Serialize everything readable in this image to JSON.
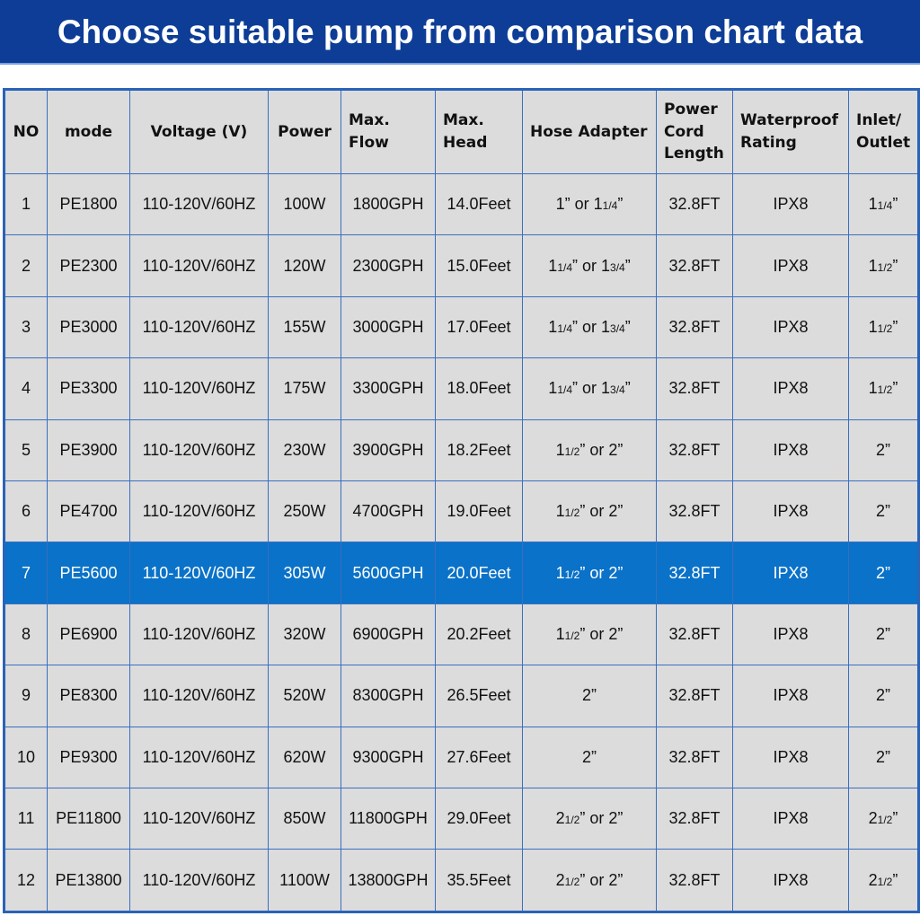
{
  "header": {
    "title": "Choose suitable pump from comparison chart data"
  },
  "table": {
    "columns": [
      "NO",
      "mode",
      "Voltage (V)",
      "Power",
      "Max. Flow",
      "Max. Head",
      "Hose Adapter",
      "Power Cord Length",
      "Waterproof Rating",
      "Inlet/ Outlet"
    ],
    "rows": [
      [
        "1",
        "PE1800",
        "110-120V/60HZ",
        "100W",
        "1800GPH",
        "14.0Feet",
        "1” or 11/4”",
        "32.8FT",
        "IPX8",
        "11/4”"
      ],
      [
        "2",
        "PE2300",
        "110-120V/60HZ",
        "120W",
        "2300GPH",
        "15.0Feet",
        "11/4” or 13/4”",
        "32.8FT",
        "IPX8",
        "11/2”"
      ],
      [
        "3",
        "PE3000",
        "110-120V/60HZ",
        "155W",
        "3000GPH",
        "17.0Feet",
        "11/4” or 13/4”",
        "32.8FT",
        "IPX8",
        "11/2”"
      ],
      [
        "4",
        "PE3300",
        "110-120V/60HZ",
        "175W",
        "3300GPH",
        "18.0Feet",
        "11/4” or 13/4”",
        "32.8FT",
        "IPX8",
        "11/2”"
      ],
      [
        "5",
        "PE3900",
        "110-120V/60HZ",
        "230W",
        "3900GPH",
        "18.2Feet",
        "11/2” or 2”",
        "32.8FT",
        "IPX8",
        "2”"
      ],
      [
        "6",
        "PE4700",
        "110-120V/60HZ",
        "250W",
        "4700GPH",
        "19.0Feet",
        "11/2” or 2”",
        "32.8FT",
        "IPX8",
        "2”"
      ],
      [
        "7",
        "PE5600",
        "110-120V/60HZ",
        "305W",
        "5600GPH",
        "20.0Feet",
        "11/2” or 2”",
        "32.8FT",
        "IPX8",
        "2”"
      ],
      [
        "8",
        "PE6900",
        "110-120V/60HZ",
        "320W",
        "6900GPH",
        "20.2Feet",
        "11/2” or 2”",
        "32.8FT",
        "IPX8",
        "2”"
      ],
      [
        "9",
        "PE8300",
        "110-120V/60HZ",
        "520W",
        "8300GPH",
        "26.5Feet",
        "2”",
        "32.8FT",
        "IPX8",
        "2”"
      ],
      [
        "10",
        "PE9300",
        "110-120V/60HZ",
        "620W",
        "9300GPH",
        "27.6Feet",
        "2”",
        "32.8FT",
        "IPX8",
        "2”"
      ],
      [
        "11",
        "PE11800",
        "110-120V/60HZ",
        "850W",
        "11800GPH",
        "29.0Feet",
        "21/2” or 2”",
        "32.8FT",
        "IPX8",
        "21/2”"
      ],
      [
        "12",
        "PE13800",
        "110-120V/60HZ",
        "1100W",
        "13800GPH",
        "35.5Feet",
        "21/2” or 2”",
        "32.8FT",
        "IPX8",
        "21/2”"
      ]
    ]
  }
}
